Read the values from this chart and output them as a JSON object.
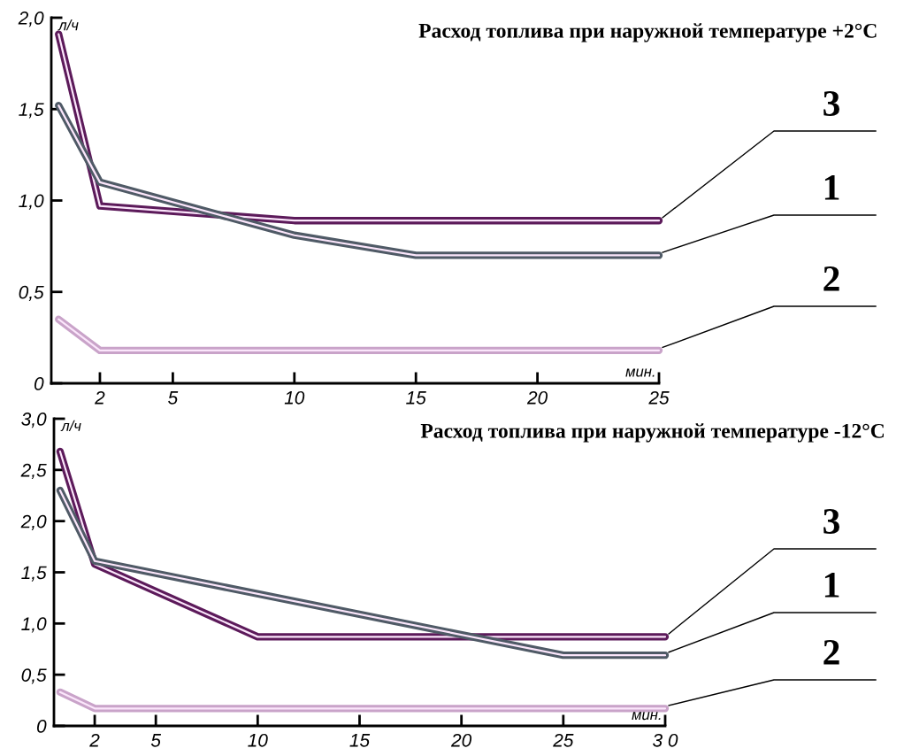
{
  "chart_data": [
    {
      "type": "line",
      "title": "Расход топлива при наружной температуре +2°C",
      "xlabel": "мин.",
      "ylabel": "л/ч",
      "xlim": [
        0,
        25
      ],
      "xticks": [
        2,
        5,
        10,
        15,
        20,
        25
      ],
      "ylim": [
        0,
        2.0
      ],
      "yticks": [
        {
          "value": 0,
          "label": "0"
        },
        {
          "value": 0.5,
          "label": "0,5"
        },
        {
          "value": 1.0,
          "label": "1,0"
        },
        {
          "value": 1.5,
          "label": "1,5"
        },
        {
          "value": 2.0,
          "label": "2,0"
        }
      ],
      "grid": false,
      "legend": false,
      "marker": "none",
      "line_style": "solid",
      "series": [
        {
          "name": "3",
          "color": "#5c1a5a",
          "x": [
            0.3,
            2,
            10,
            25
          ],
          "values": [
            1.91,
            0.97,
            0.89,
            0.89
          ]
        },
        {
          "name": "1",
          "color": "#4f5a66",
          "x": [
            0.3,
            2,
            10,
            15,
            25
          ],
          "values": [
            1.52,
            1.1,
            0.81,
            0.7,
            0.7
          ]
        },
        {
          "name": "2",
          "color": "#c9a3c9",
          "x": [
            0.3,
            2,
            25
          ],
          "values": [
            0.35,
            0.18,
            0.18
          ]
        }
      ]
    },
    {
      "type": "line",
      "title": "Расход топлива при наружной температуре -12°C",
      "xlabel": "мин.",
      "ylabel": "л/ч",
      "xlim": [
        0,
        30
      ],
      "xticks": [
        2,
        5,
        10,
        15,
        20,
        25,
        {
          "value": 30,
          "label": "3 0"
        }
      ],
      "ylim": [
        0,
        3.0
      ],
      "yticks": [
        {
          "value": 0,
          "label": "0"
        },
        {
          "value": 0.5,
          "label": "0,5"
        },
        {
          "value": 1.0,
          "label": "1,0"
        },
        {
          "value": 1.5,
          "label": "1,5"
        },
        {
          "value": 2.0,
          "label": "2,0"
        },
        {
          "value": 2.5,
          "label": "2,5"
        },
        {
          "value": 3.0,
          "label": "3,0"
        }
      ],
      "grid": false,
      "legend": false,
      "marker": "none",
      "line_style": "solid",
      "series": [
        {
          "name": "3",
          "color": "#5c1a5a",
          "x": [
            0.3,
            2,
            10,
            30
          ],
          "values": [
            2.68,
            1.58,
            0.87,
            0.87
          ]
        },
        {
          "name": "1",
          "color": "#4f5a66",
          "x": [
            0.3,
            2,
            25,
            30
          ],
          "values": [
            2.3,
            1.61,
            0.69,
            0.69
          ]
        },
        {
          "name": "2",
          "color": "#c9a3c9",
          "x": [
            0.3,
            2,
            30
          ],
          "values": [
            0.33,
            0.17,
            0.17
          ]
        }
      ]
    }
  ]
}
